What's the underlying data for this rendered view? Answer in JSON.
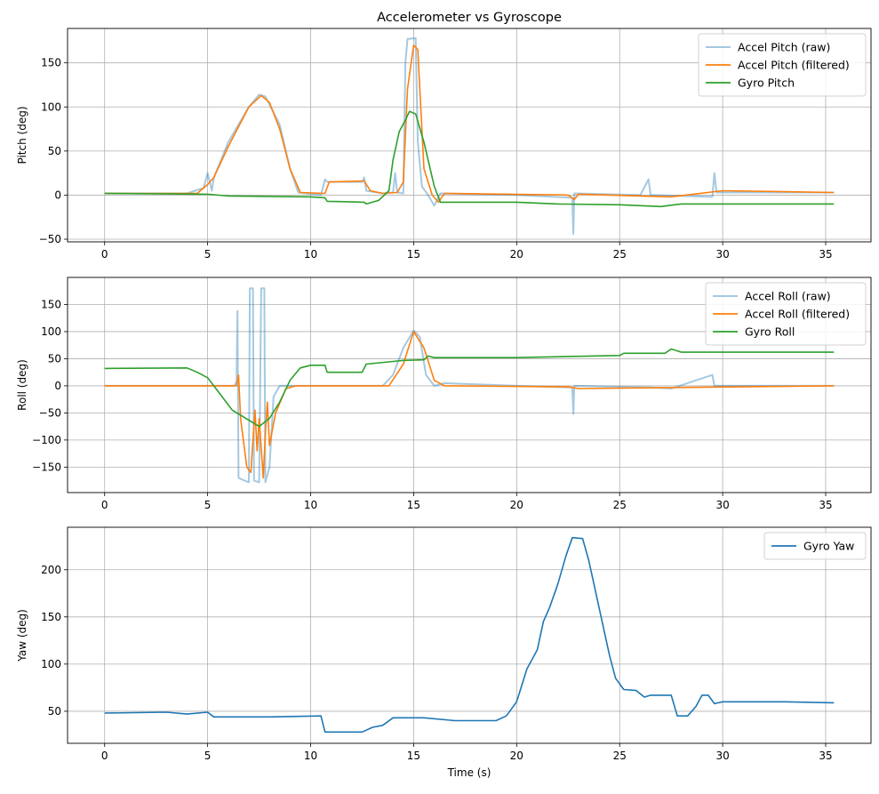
{
  "chart_data": [
    {
      "type": "line",
      "title": "Accelerometer vs Gyroscope",
      "xlabel": "",
      "ylabel": "Pitch (deg)",
      "xlim": [
        -1.8,
        37.2
      ],
      "ylim": [
        -53,
        189
      ],
      "xticks": [
        0,
        5,
        10,
        15,
        20,
        25,
        30,
        35
      ],
      "yticks": [
        -50,
        0,
        50,
        100,
        150
      ],
      "grid": true,
      "legend": "top-right",
      "series": [
        {
          "name": "Accel Pitch (raw)",
          "color": "#1f77b4",
          "alpha": 0.4,
          "points": [
            [
              0,
              2
            ],
            [
              4,
              2
            ],
            [
              4.8,
              8
            ],
            [
              5,
              25
            ],
            [
              5.2,
              5
            ],
            [
              5.3,
              20
            ],
            [
              6,
              60
            ],
            [
              7,
              100
            ],
            [
              7.5,
              114
            ],
            [
              7.8,
              112
            ],
            [
              8.5,
              80
            ],
            [
              9,
              30
            ],
            [
              9.4,
              3
            ],
            [
              10.5,
              0
            ],
            [
              10.7,
              18
            ],
            [
              10.8,
              15
            ],
            [
              12.5,
              15
            ],
            [
              12.6,
              20
            ],
            [
              12.7,
              5
            ],
            [
              13.5,
              2
            ],
            [
              14,
              3
            ],
            [
              14.1,
              25
            ],
            [
              14.2,
              3
            ],
            [
              14.5,
              2
            ],
            [
              14.6,
              150
            ],
            [
              14.7,
              177
            ],
            [
              15.1,
              178
            ],
            [
              15.2,
              60
            ],
            [
              15.4,
              10
            ],
            [
              15.7,
              0
            ],
            [
              16,
              -12
            ],
            [
              16.3,
              2
            ],
            [
              20,
              0
            ],
            [
              22.7,
              -3
            ],
            [
              22.75,
              -44
            ],
            [
              22.8,
              2
            ],
            [
              26,
              0
            ],
            [
              26.4,
              18
            ],
            [
              26.5,
              0
            ],
            [
              29.5,
              -2
            ],
            [
              29.6,
              25
            ],
            [
              29.7,
              3
            ],
            [
              35.4,
              3
            ]
          ]
        },
        {
          "name": "Accel Pitch (filtered)",
          "color": "#ff7f0e",
          "alpha": 1,
          "points": [
            [
              0,
              2
            ],
            [
              4.5,
              2
            ],
            [
              5,
              12
            ],
            [
              5.3,
              20
            ],
            [
              6,
              55
            ],
            [
              7,
              100
            ],
            [
              7.6,
              113
            ],
            [
              8,
              105
            ],
            [
              8.5,
              75
            ],
            [
              9,
              30
            ],
            [
              9.5,
              3
            ],
            [
              10.7,
              2
            ],
            [
              10.9,
              15
            ],
            [
              12.6,
              16
            ],
            [
              12.9,
              5
            ],
            [
              13.5,
              2
            ],
            [
              14.2,
              3
            ],
            [
              14.5,
              15
            ],
            [
              14.7,
              120
            ],
            [
              15,
              170
            ],
            [
              15.2,
              165
            ],
            [
              15.5,
              30
            ],
            [
              15.9,
              0
            ],
            [
              16.2,
              -8
            ],
            [
              16.5,
              2
            ],
            [
              22.5,
              0
            ],
            [
              22.8,
              -5
            ],
            [
              23,
              1
            ],
            [
              27.5,
              -2
            ],
            [
              30,
              5
            ],
            [
              35.4,
              3
            ]
          ]
        },
        {
          "name": "Gyro Pitch",
          "color": "#2ca02c",
          "alpha": 1,
          "points": [
            [
              0,
              2
            ],
            [
              5,
              1
            ],
            [
              6,
              -1
            ],
            [
              10,
              -2
            ],
            [
              10.7,
              -3
            ],
            [
              10.8,
              -7
            ],
            [
              12.6,
              -8
            ],
            [
              12.7,
              -10
            ],
            [
              13.3,
              -6
            ],
            [
              13.8,
              5
            ],
            [
              14,
              40
            ],
            [
              14.3,
              72
            ],
            [
              14.6,
              85
            ],
            [
              14.8,
              95
            ],
            [
              15.1,
              92
            ],
            [
              15.5,
              60
            ],
            [
              16,
              10
            ],
            [
              16.3,
              -8
            ],
            [
              20,
              -8
            ],
            [
              22,
              -10
            ],
            [
              25,
              -11
            ],
            [
              27,
              -13
            ],
            [
              28,
              -10
            ],
            [
              35.4,
              -10
            ]
          ]
        }
      ]
    },
    {
      "type": "line",
      "title": "",
      "xlabel": "",
      "ylabel": "Roll (deg)",
      "xlim": [
        -1.8,
        37.2
      ],
      "ylim": [
        -197,
        200
      ],
      "xticks": [
        0,
        5,
        10,
        15,
        20,
        25,
        30,
        35
      ],
      "yticks": [
        -150,
        -100,
        -50,
        0,
        50,
        100,
        150
      ],
      "grid": true,
      "legend": "top-right",
      "series": [
        {
          "name": "Accel Roll (raw)",
          "color": "#1f77b4",
          "alpha": 0.4,
          "points": [
            [
              0,
              0
            ],
            [
              6.3,
              0
            ],
            [
              6.4,
              8
            ],
            [
              6.45,
              138
            ],
            [
              6.5,
              -170
            ],
            [
              6.8,
              -175
            ],
            [
              7,
              -178
            ],
            [
              7.05,
              180
            ],
            [
              7.2,
              180
            ],
            [
              7.25,
              -175
            ],
            [
              7.5,
              -178
            ],
            [
              7.6,
              180
            ],
            [
              7.75,
              180
            ],
            [
              7.8,
              -178
            ],
            [
              8,
              -150
            ],
            [
              8.2,
              -20
            ],
            [
              8.5,
              0
            ],
            [
              13.5,
              0
            ],
            [
              14,
              20
            ],
            [
              14.5,
              70
            ],
            [
              15,
              102
            ],
            [
              15.3,
              90
            ],
            [
              15.6,
              20
            ],
            [
              16,
              0
            ],
            [
              16.5,
              5
            ],
            [
              20,
              0
            ],
            [
              22.7,
              -3
            ],
            [
              22.75,
              -52
            ],
            [
              22.8,
              0
            ],
            [
              26.5,
              -3
            ],
            [
              27.5,
              -5
            ],
            [
              29.5,
              20
            ],
            [
              29.6,
              0
            ],
            [
              35.4,
              0
            ]
          ]
        },
        {
          "name": "Accel Roll (filtered)",
          "color": "#ff7f0e",
          "alpha": 1,
          "points": [
            [
              0,
              0
            ],
            [
              6.4,
              0
            ],
            [
              6.5,
              20
            ],
            [
              6.6,
              -60
            ],
            [
              6.9,
              -150
            ],
            [
              7.1,
              -160
            ],
            [
              7.2,
              -100
            ],
            [
              7.3,
              -45
            ],
            [
              7.4,
              -120
            ],
            [
              7.5,
              -60
            ],
            [
              7.7,
              -170
            ],
            [
              7.8,
              -90
            ],
            [
              7.9,
              -30
            ],
            [
              8,
              -110
            ],
            [
              8.3,
              -50
            ],
            [
              8.8,
              -5
            ],
            [
              9.3,
              0
            ],
            [
              13.8,
              0
            ],
            [
              14.5,
              40
            ],
            [
              15,
              100
            ],
            [
              15.5,
              70
            ],
            [
              16,
              10
            ],
            [
              16.5,
              0
            ],
            [
              22.5,
              -2
            ],
            [
              23,
              -5
            ],
            [
              35.4,
              0
            ]
          ]
        },
        {
          "name": "Gyro Roll",
          "color": "#2ca02c",
          "alpha": 1,
          "points": [
            [
              0,
              32
            ],
            [
              4,
              33
            ],
            [
              4.5,
              25
            ],
            [
              5,
              15
            ],
            [
              5.5,
              -10
            ],
            [
              6.2,
              -45
            ],
            [
              7.5,
              -75
            ],
            [
              8,
              -60
            ],
            [
              8.5,
              -30
            ],
            [
              9,
              10
            ],
            [
              9.5,
              33
            ],
            [
              10,
              38
            ],
            [
              10.7,
              38
            ],
            [
              10.8,
              25
            ],
            [
              12.5,
              25
            ],
            [
              12.7,
              40
            ],
            [
              14,
              45
            ],
            [
              14.5,
              47
            ],
            [
              15.5,
              48
            ],
            [
              15.7,
              55
            ],
            [
              16,
              52
            ],
            [
              20,
              52
            ],
            [
              25,
              56
            ],
            [
              25.2,
              60
            ],
            [
              27.2,
              60
            ],
            [
              27.5,
              68
            ],
            [
              28,
              62
            ],
            [
              35.4,
              62
            ]
          ]
        }
      ]
    },
    {
      "type": "line",
      "title": "",
      "xlabel": "Time (s)",
      "ylabel": "Yaw (deg)",
      "xlim": [
        -1.8,
        37.2
      ],
      "ylim": [
        16,
        245
      ],
      "xticks": [
        0,
        5,
        10,
        15,
        20,
        25,
        30,
        35
      ],
      "yticks": [
        50,
        100,
        150,
        200
      ],
      "grid": true,
      "legend": "top-right",
      "series": [
        {
          "name": "Gyro Yaw",
          "color": "#1f77b4",
          "alpha": 1,
          "points": [
            [
              0,
              48
            ],
            [
              3,
              49
            ],
            [
              4,
              47
            ],
            [
              5,
              49
            ],
            [
              5.3,
              44
            ],
            [
              8,
              44
            ],
            [
              10.5,
              45
            ],
            [
              10.7,
              28
            ],
            [
              12.5,
              28
            ],
            [
              13,
              33
            ],
            [
              13.5,
              35
            ],
            [
              14,
              43
            ],
            [
              15.5,
              43
            ],
            [
              17,
              40
            ],
            [
              19,
              40
            ],
            [
              19.5,
              45
            ],
            [
              20,
              60
            ],
            [
              20.5,
              95
            ],
            [
              21,
              115
            ],
            [
              21.3,
              145
            ],
            [
              21.6,
              160
            ],
            [
              22,
              185
            ],
            [
              22.4,
              215
            ],
            [
              22.7,
              234
            ],
            [
              23.2,
              233
            ],
            [
              23.5,
              210
            ],
            [
              24,
              160
            ],
            [
              24.5,
              110
            ],
            [
              24.8,
              85
            ],
            [
              25.2,
              73
            ],
            [
              25.8,
              72
            ],
            [
              26.2,
              65
            ],
            [
              26.5,
              67
            ],
            [
              27.5,
              67
            ],
            [
              27.8,
              45
            ],
            [
              28.3,
              45
            ],
            [
              28.7,
              55
            ],
            [
              29,
              67
            ],
            [
              29.3,
              67
            ],
            [
              29.6,
              58
            ],
            [
              30,
              60
            ],
            [
              33,
              60
            ],
            [
              35.4,
              59
            ]
          ]
        }
      ]
    }
  ]
}
